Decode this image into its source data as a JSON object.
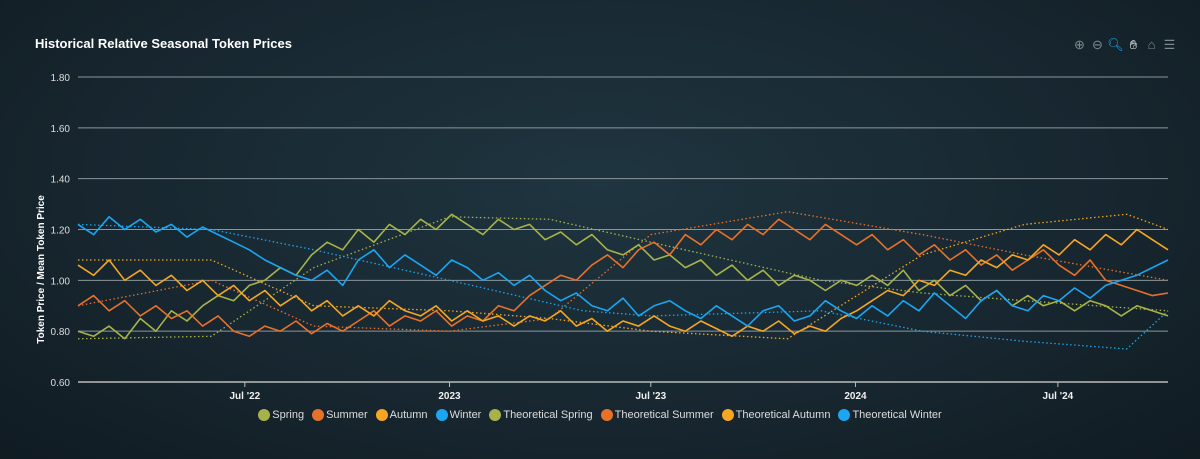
{
  "title": "Historical Relative Seasonal Token Prices",
  "toolbar": [
    {
      "name": "zoom-in-icon",
      "g": "⊕"
    },
    {
      "name": "zoom-out-icon",
      "g": "⊖"
    },
    {
      "name": "selection-zoom-icon",
      "g": "🔍︎"
    },
    {
      "name": "pan-hand-icon",
      "g": "✋︎"
    },
    {
      "name": "home-reset-icon",
      "g": "⌂"
    },
    {
      "name": "menu-icon",
      "g": "☰"
    }
  ],
  "chart_data": {
    "type": "line",
    "title": "Historical Relative Seasonal Token Prices",
    "ylabel": "Token Price / Mean Token Price",
    "xlabel": "",
    "ylim": [
      0.6,
      1.8
    ],
    "yticks": [
      "0.60",
      "0.80",
      "1.00",
      "1.20",
      "1.40",
      "1.60",
      "1.80"
    ],
    "xrange": [
      "2022-02-01",
      "2024-10-08"
    ],
    "xticks": [
      {
        "date": "2022-07-01",
        "label": "Jul '22"
      },
      {
        "date": "2023-01-01",
        "label": "2023"
      },
      {
        "date": "2023-07-01",
        "label": "Jul '23"
      },
      {
        "date": "2024-01-01",
        "label": "2024"
      },
      {
        "date": "2024-07-01",
        "label": "Jul '24"
      }
    ],
    "grid": true,
    "legend": "bottom",
    "series_start": "2022-02-01",
    "series_interval_days": 14,
    "series": [
      {
        "name": "Spring",
        "color": "#a7b34a",
        "values": [
          0.8,
          0.78,
          0.82,
          0.77,
          0.85,
          0.8,
          0.88,
          0.84,
          0.9,
          0.94,
          0.92,
          0.98,
          1.0,
          1.05,
          1.02,
          1.1,
          1.15,
          1.12,
          1.2,
          1.15,
          1.22,
          1.18,
          1.24,
          1.2,
          1.26,
          1.22,
          1.18,
          1.24,
          1.2,
          1.22,
          1.16,
          1.19,
          1.14,
          1.18,
          1.12,
          1.1,
          1.14,
          1.08,
          1.1,
          1.05,
          1.08,
          1.02,
          1.06,
          1.0,
          1.04,
          0.98,
          1.02,
          1.0,
          0.96,
          1.0,
          0.98,
          1.02,
          0.98,
          1.04,
          0.96,
          1.0,
          0.94,
          0.98,
          0.92,
          0.96,
          0.9,
          0.94,
          0.9,
          0.92,
          0.88,
          0.92,
          0.9,
          0.86,
          0.9,
          0.88,
          0.86
        ]
      },
      {
        "name": "Summer",
        "color": "#e8712a",
        "values": [
          0.9,
          0.94,
          0.88,
          0.92,
          0.86,
          0.9,
          0.85,
          0.88,
          0.82,
          0.86,
          0.8,
          0.78,
          0.82,
          0.8,
          0.84,
          0.79,
          0.83,
          0.8,
          0.84,
          0.88,
          0.82,
          0.86,
          0.84,
          0.88,
          0.82,
          0.86,
          0.84,
          0.9,
          0.88,
          0.94,
          0.98,
          1.02,
          1.0,
          1.06,
          1.1,
          1.05,
          1.12,
          1.15,
          1.1,
          1.18,
          1.14,
          1.2,
          1.16,
          1.22,
          1.18,
          1.24,
          1.2,
          1.16,
          1.22,
          1.18,
          1.14,
          1.18,
          1.12,
          1.16,
          1.1,
          1.14,
          1.08,
          1.12,
          1.06,
          1.1,
          1.04,
          1.08,
          1.12,
          1.06,
          1.02,
          1.08,
          1.0,
          0.98,
          0.96,
          0.94,
          0.95
        ]
      },
      {
        "name": "Autumn",
        "color": "#f5a623",
        "values": [
          1.06,
          1.02,
          1.08,
          1.0,
          1.04,
          0.98,
          1.02,
          0.96,
          1.0,
          0.94,
          0.98,
          0.92,
          0.96,
          0.9,
          0.94,
          0.88,
          0.92,
          0.86,
          0.9,
          0.86,
          0.92,
          0.88,
          0.86,
          0.9,
          0.84,
          0.88,
          0.84,
          0.86,
          0.82,
          0.86,
          0.84,
          0.88,
          0.82,
          0.85,
          0.8,
          0.84,
          0.82,
          0.86,
          0.82,
          0.8,
          0.84,
          0.81,
          0.78,
          0.82,
          0.8,
          0.84,
          0.79,
          0.82,
          0.8,
          0.85,
          0.88,
          0.92,
          0.96,
          0.94,
          1.0,
          0.98,
          1.04,
          1.02,
          1.08,
          1.05,
          1.1,
          1.08,
          1.14,
          1.1,
          1.16,
          1.12,
          1.18,
          1.14,
          1.2,
          1.16,
          1.12
        ]
      },
      {
        "name": "Winter",
        "color": "#1aa6f0",
        "values": [
          1.22,
          1.18,
          1.25,
          1.2,
          1.24,
          1.19,
          1.22,
          1.17,
          1.21,
          1.18,
          1.15,
          1.12,
          1.08,
          1.05,
          1.02,
          1.0,
          1.04,
          0.98,
          1.08,
          1.12,
          1.05,
          1.1,
          1.06,
          1.02,
          1.08,
          1.05,
          1.0,
          1.03,
          0.98,
          1.02,
          0.96,
          0.92,
          0.95,
          0.9,
          0.88,
          0.93,
          0.86,
          0.9,
          0.92,
          0.88,
          0.85,
          0.9,
          0.86,
          0.82,
          0.88,
          0.9,
          0.84,
          0.86,
          0.92,
          0.88,
          0.85,
          0.9,
          0.86,
          0.92,
          0.88,
          0.95,
          0.9,
          0.85,
          0.92,
          0.96,
          0.9,
          0.88,
          0.94,
          0.92,
          0.97,
          0.93,
          0.98,
          1.0,
          1.02,
          1.05,
          1.08
        ]
      }
    ],
    "theoretical": [
      {
        "name": "Theoretical Spring",
        "color": "#a7b34a",
        "points": [
          [
            "2022-02-01",
            0.77
          ],
          [
            "2022-06-01",
            0.78
          ],
          [
            "2022-09-01",
            1.05
          ],
          [
            "2023-01-01",
            1.25
          ],
          [
            "2023-04-01",
            1.24
          ],
          [
            "2023-07-01",
            1.15
          ],
          [
            "2023-12-01",
            1.0
          ],
          [
            "2024-03-01",
            0.95
          ],
          [
            "2024-06-01",
            0.92
          ],
          [
            "2024-10-08",
            0.88
          ]
        ]
      },
      {
        "name": "Theoretical Summer",
        "color": "#e8712a",
        "points": [
          [
            "2022-02-01",
            0.9
          ],
          [
            "2022-06-01",
            1.0
          ],
          [
            "2022-09-01",
            0.82
          ],
          [
            "2023-01-01",
            0.8
          ],
          [
            "2023-04-01",
            0.85
          ],
          [
            "2023-07-01",
            1.18
          ],
          [
            "2023-11-01",
            1.27
          ],
          [
            "2024-03-01",
            1.18
          ],
          [
            "2024-06-01",
            1.1
          ],
          [
            "2024-10-08",
            1.0
          ]
        ]
      },
      {
        "name": "Theoretical Autumn",
        "color": "#f5a623",
        "points": [
          [
            "2022-02-01",
            1.08
          ],
          [
            "2022-06-01",
            1.08
          ],
          [
            "2022-09-01",
            0.9
          ],
          [
            "2023-01-01",
            0.88
          ],
          [
            "2023-04-01",
            0.85
          ],
          [
            "2023-07-01",
            0.8
          ],
          [
            "2023-11-01",
            0.77
          ],
          [
            "2024-03-01",
            1.1
          ],
          [
            "2024-06-01",
            1.22
          ],
          [
            "2024-09-01",
            1.26
          ],
          [
            "2024-10-08",
            1.2
          ]
        ]
      },
      {
        "name": "Theoretical Winter",
        "color": "#1aa6f0",
        "points": [
          [
            "2022-02-01",
            1.22
          ],
          [
            "2022-06-01",
            1.2
          ],
          [
            "2022-09-01",
            1.12
          ],
          [
            "2023-01-01",
            1.0
          ],
          [
            "2023-05-01",
            0.88
          ],
          [
            "2023-07-01",
            0.86
          ],
          [
            "2023-12-01",
            0.88
          ],
          [
            "2024-03-01",
            0.8
          ],
          [
            "2024-06-01",
            0.76
          ],
          [
            "2024-09-01",
            0.73
          ],
          [
            "2024-10-08",
            0.88
          ]
        ]
      }
    ]
  }
}
